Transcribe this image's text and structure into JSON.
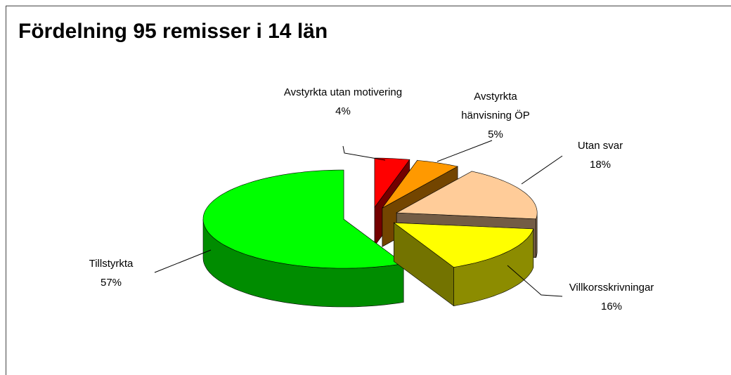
{
  "chart_data": {
    "type": "pie3d",
    "title": "Fördelning 95 remisser i 14 län",
    "categories": [
      "Avstyrkta utan motivering",
      "Avstyrkta hänvisning ÖP",
      "Utan svar",
      "Villkorsskrivningar",
      "Tillstyrkta"
    ],
    "values": [
      4,
      5,
      18,
      16,
      57
    ],
    "value_labels": [
      "4%",
      "5%",
      "18%",
      "16%",
      "57%"
    ],
    "colors": [
      "#ff0000",
      "#ff9900",
      "#ffcc99",
      "#ffff00",
      "#00ff00"
    ]
  }
}
